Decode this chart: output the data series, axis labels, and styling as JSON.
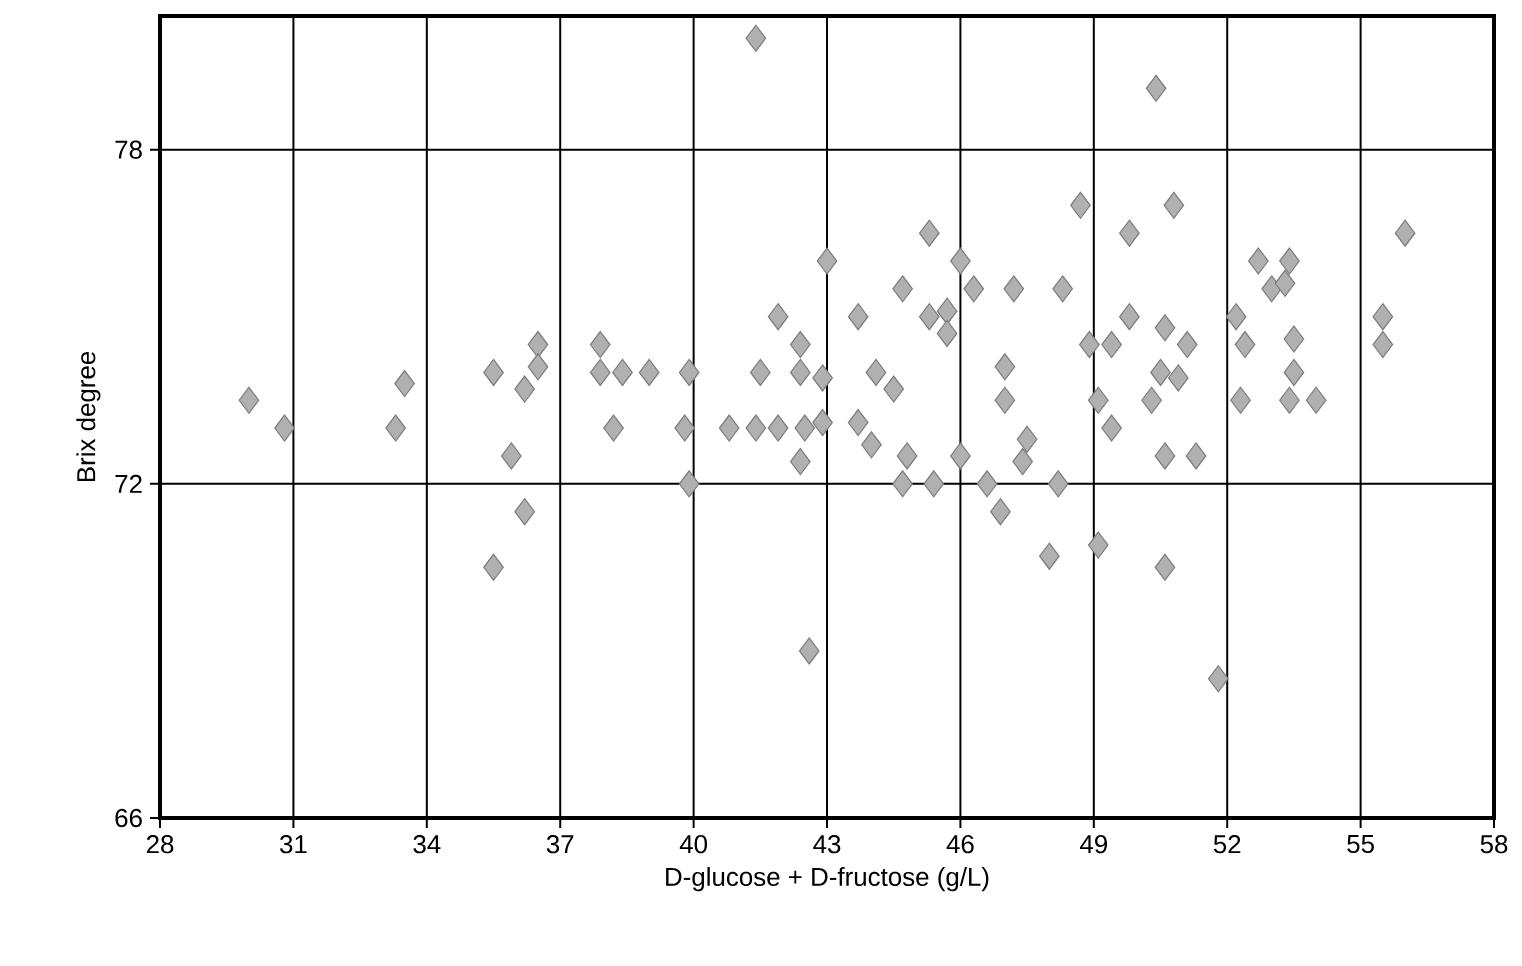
{
  "chart_data": {
    "type": "scatter",
    "xlabel": "D-glucose + D-fructose (g/L)",
    "ylabel": "Brix degree",
    "xlim": [
      28,
      58
    ],
    "xticks": [
      28,
      31,
      34,
      37,
      40,
      43,
      46,
      49,
      52,
      55,
      58
    ],
    "ylim": [
      66,
      80.4
    ],
    "yticks": [
      66,
      72,
      78
    ],
    "grid": true,
    "marker": "diamond",
    "series": [
      {
        "color": "#b0b0b0",
        "x": [
          30.0,
          30.8,
          33.5,
          33.3,
          36.5,
          35.5,
          36.5,
          36.2,
          35.9,
          36.2,
          35.5,
          37.9,
          37.9,
          38.4,
          39.0,
          39.9,
          38.2,
          39.8,
          39.9,
          41.4,
          43.0,
          41.9,
          42.4,
          41.5,
          42.4,
          42.9,
          40.8,
          41.4,
          41.9,
          42.5,
          42.9,
          42.4,
          43.7,
          44.0,
          43.7,
          44.7,
          45.3,
          46.0,
          46.3,
          47.2,
          48.3,
          45.3,
          45.7,
          45.7,
          44.1,
          44.5,
          44.8,
          44.7,
          45.4,
          46.0,
          46.6,
          46.9,
          47.0,
          47.0,
          47.5,
          47.4,
          48.2,
          48.0,
          42.6,
          50.4,
          48.7,
          50.8,
          49.8,
          56.0,
          52.7,
          53.4,
          53.0,
          53.3,
          49.8,
          48.9,
          49.4,
          50.6,
          51.1,
          50.5,
          50.9,
          49.1,
          50.3,
          49.4,
          50.6,
          51.3,
          49.1,
          50.6,
          51.8,
          52.2,
          52.4,
          53.5,
          53.5,
          52.3,
          53.4,
          54.0,
          55.5,
          55.5
        ],
        "values": [
          73.5,
          73.0,
          73.8,
          73.0,
          74.5,
          74.0,
          74.1,
          73.7,
          72.5,
          71.5,
          70.5,
          74.5,
          74.0,
          74.0,
          74.0,
          74.0,
          73.0,
          73.0,
          72.0,
          80.0,
          76.0,
          75.0,
          74.5,
          74.0,
          74.0,
          73.9,
          73.0,
          73.0,
          73.0,
          73.0,
          73.1,
          72.4,
          73.1,
          72.7,
          75.0,
          75.5,
          76.5,
          76.0,
          75.5,
          75.5,
          75.5,
          75.0,
          75.1,
          74.7,
          74.0,
          73.7,
          72.5,
          72.0,
          72.0,
          72.5,
          72.0,
          71.5,
          74.1,
          73.5,
          72.8,
          72.4,
          72.0,
          70.7,
          69.0,
          79.1,
          77.0,
          77.0,
          76.5,
          76.5,
          76.0,
          76.0,
          75.5,
          75.6,
          75.0,
          74.5,
          74.5,
          74.8,
          74.5,
          74.0,
          73.9,
          73.5,
          73.5,
          73.0,
          72.5,
          72.5,
          70.9,
          70.5,
          68.5,
          75.0,
          74.5,
          74.6,
          74.0,
          73.5,
          73.5,
          73.5,
          75.0,
          74.5
        ]
      }
    ]
  }
}
